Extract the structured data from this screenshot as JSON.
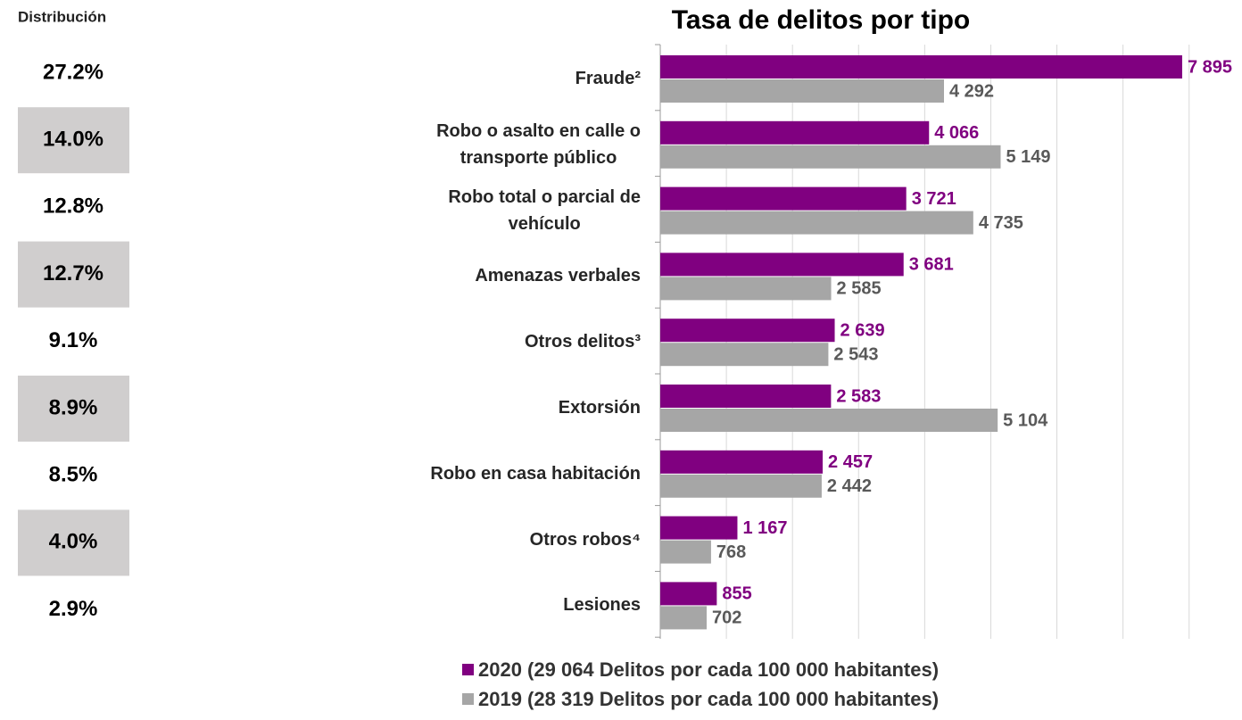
{
  "distribution": {
    "title": "Distribución",
    "labels": [
      "27.2%",
      "14.0%",
      "12.8%",
      "12.7%",
      "9.1%",
      "8.9%",
      "8.5%",
      "4.0%",
      "2.9%"
    ]
  },
  "chart_data": {
    "type": "bar",
    "orientation": "horizontal",
    "title": "Tasa de delitos por tipo",
    "categories": [
      "Fraude²",
      "Robo o asalto en calle o\ntransporte público",
      "Robo total o parcial de\nvehículo",
      "Amenazas verbales",
      "Otros delitos³",
      "Extorsión",
      "Robo en casa habitación",
      "Otros robos⁴",
      "Lesiones"
    ],
    "series": [
      {
        "name": "2020 (29 064 Delitos por cada 100 000 habitantes)",
        "color": "#800080",
        "values": [
          7895,
          4066,
          3721,
          3681,
          2639,
          2583,
          2457,
          1167,
          855
        ],
        "value_labels": [
          "7 895",
          "4 066",
          "3 721",
          "3 681",
          "2 639",
          "2 583",
          "2 457",
          "1 167",
          "855"
        ]
      },
      {
        "name": "2019 (28 319 Delitos por cada 100 000 habitantes)",
        "color": "#a6a6a6",
        "values": [
          4292,
          5149,
          4735,
          2585,
          2543,
          5104,
          2442,
          768,
          702
        ],
        "value_labels": [
          "4 292",
          "5 149",
          "4 735",
          "2 585",
          "2 543",
          "5 104",
          "2 442",
          "768",
          "702"
        ]
      }
    ],
    "xlim": [
      0,
      8800
    ],
    "xticks": [
      0,
      1000,
      2000,
      3000,
      4000,
      5000,
      6000,
      7000,
      8000
    ],
    "grid": true
  }
}
